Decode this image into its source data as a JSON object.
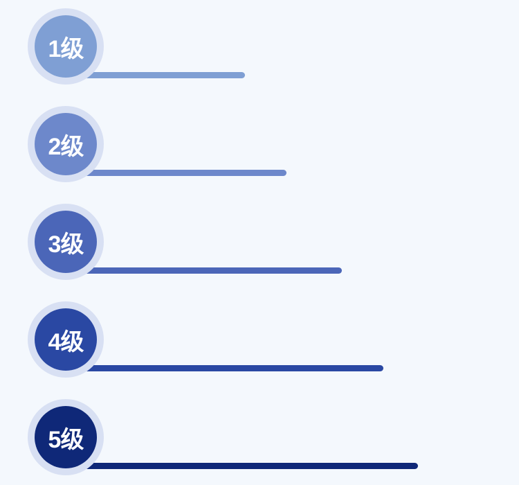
{
  "levels": [
    {
      "label": "1级",
      "color": "#7f9fd4",
      "bar_value": 259
    },
    {
      "label": "2级",
      "color": "#6d88cb",
      "bar_value": 319
    },
    {
      "label": "3级",
      "color": "#4b66b8",
      "bar_value": 399
    },
    {
      "label": "4级",
      "color": "#2a48a3",
      "bar_value": 459
    },
    {
      "label": "5级",
      "color": "#0f2878",
      "bar_value": 509
    }
  ]
}
